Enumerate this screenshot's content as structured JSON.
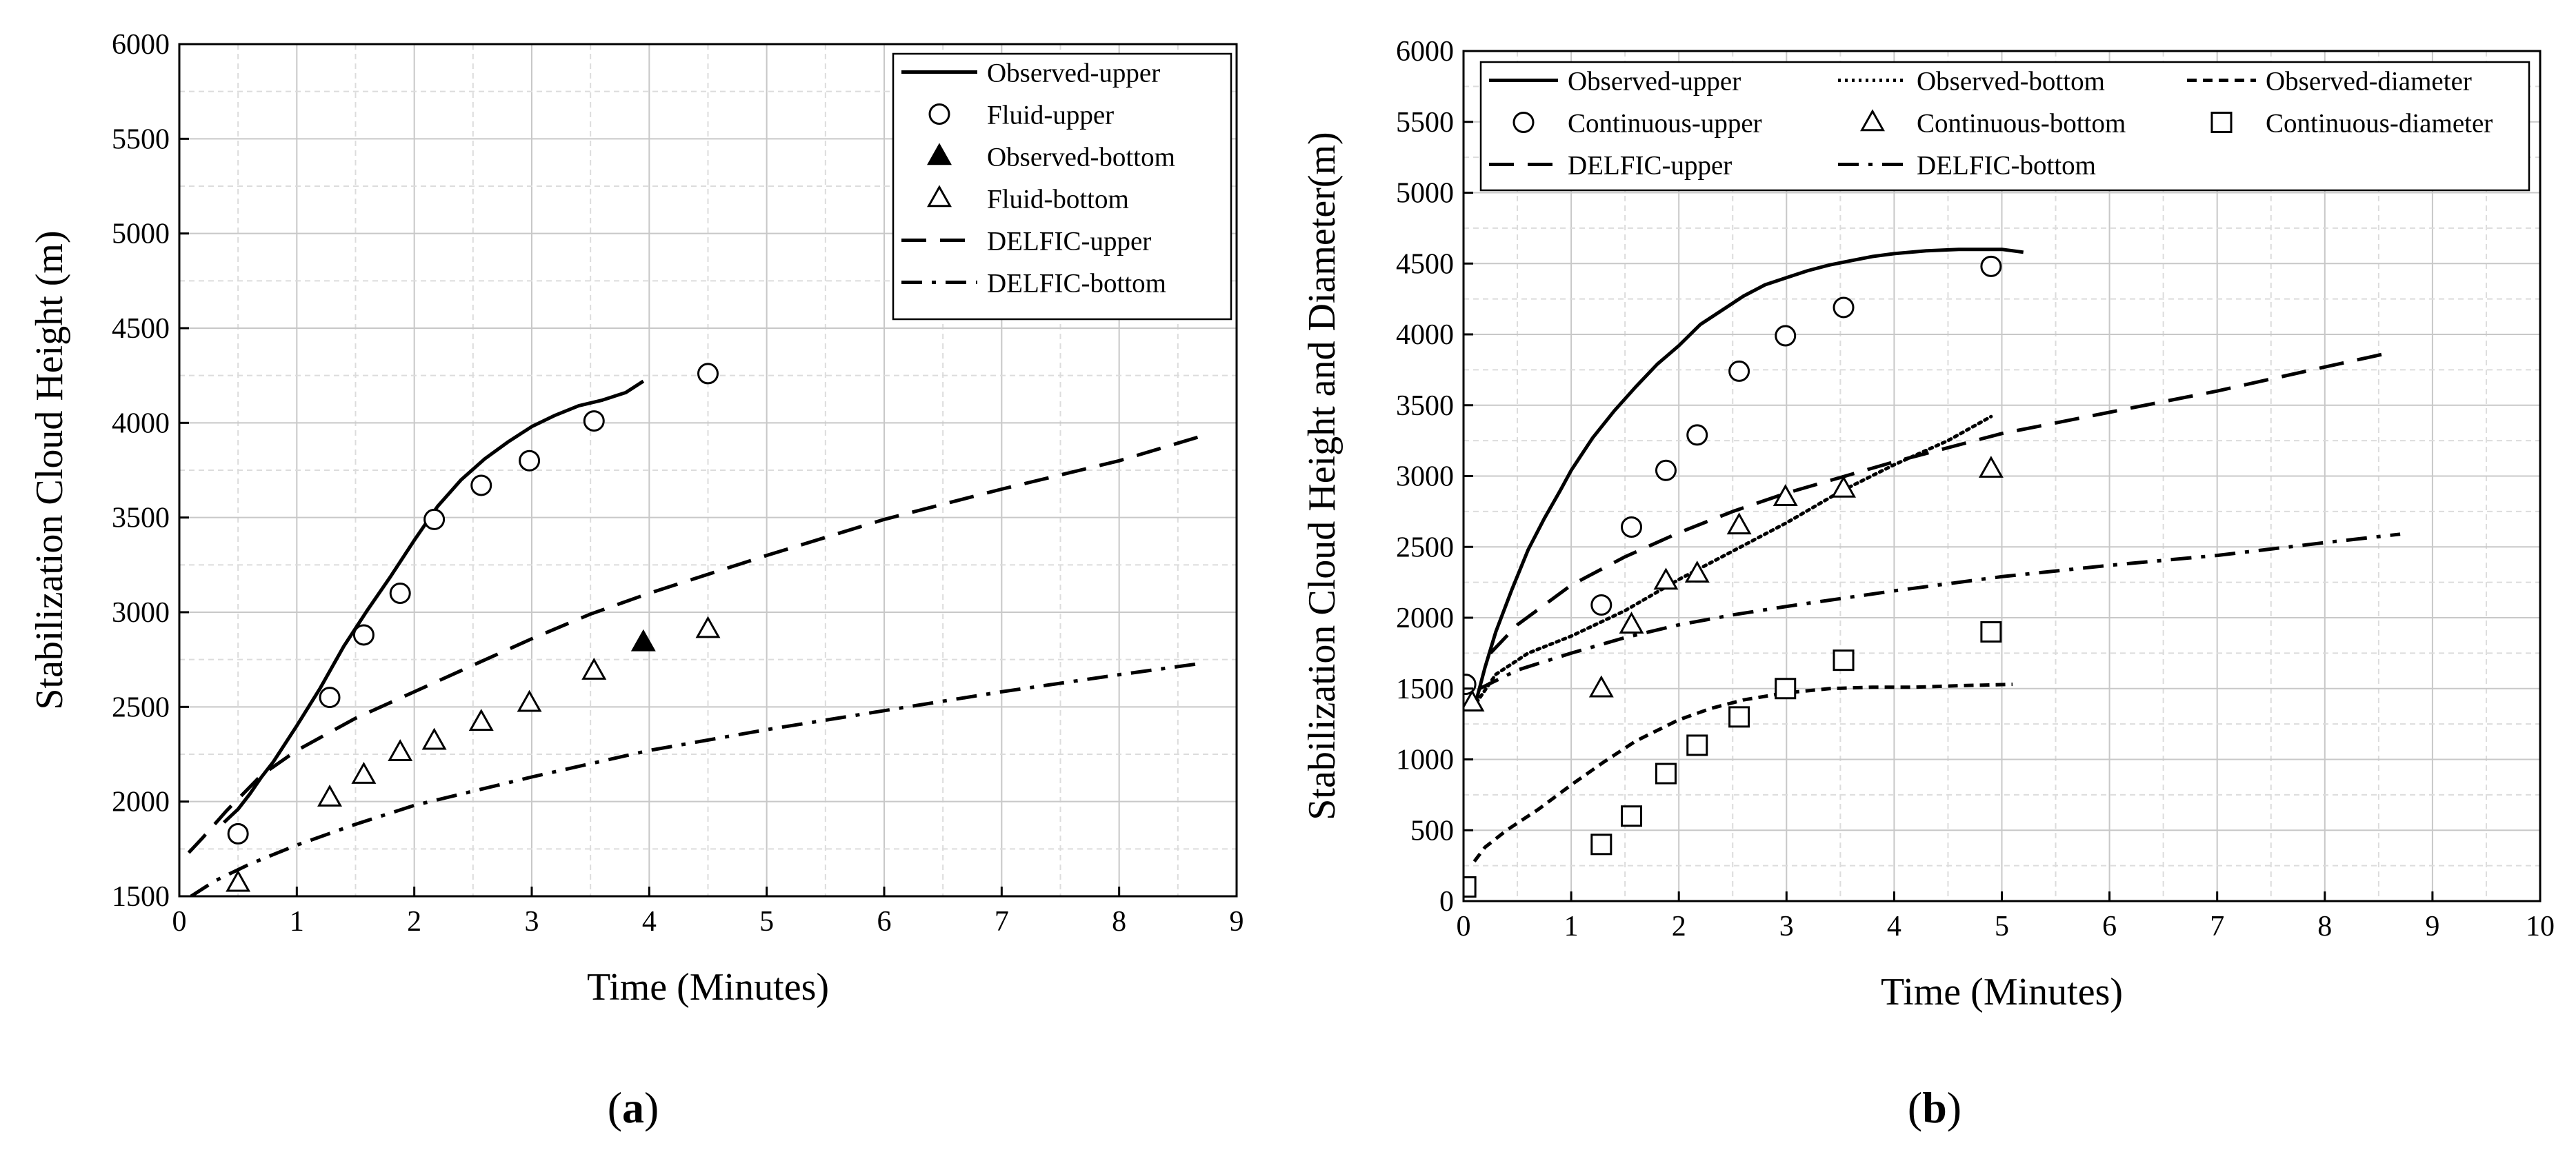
{
  "chart_data": [
    {
      "type": "line",
      "panel": "a",
      "panel_label": "a",
      "title": "",
      "xlabel": "Time (Minutes)",
      "ylabel": "Stabilization Cloud Height (m)",
      "xlim": [
        0,
        9
      ],
      "ylim": [
        1500,
        6000
      ],
      "xticks": [
        0,
        1,
        2,
        3,
        4,
        5,
        6,
        7,
        8,
        9
      ],
      "yticks": [
        1500,
        2000,
        2500,
        3000,
        3500,
        4000,
        4500,
        5000,
        5500,
        6000
      ],
      "grid": true,
      "legend_position": "top-right",
      "legend": [
        {
          "label": "Observed-upper",
          "series": "observed_upper",
          "style": "solid-line"
        },
        {
          "label": "Fluid-upper",
          "series": "fluid_upper",
          "style": "open-circle"
        },
        {
          "label": "Observed-bottom",
          "series": "observed_bottom",
          "style": "filled-triangle"
        },
        {
          "label": "Fluid-bottom",
          "series": "fluid_bottom",
          "style": "open-triangle"
        },
        {
          "label": "DELFIC-upper",
          "series": "delfic_upper",
          "style": "dashed-line"
        },
        {
          "label": "DELFIC-bottom",
          "series": "delfic_bottom",
          "style": "dashdot-line"
        }
      ],
      "series": [
        {
          "id": "observed_upper",
          "name": "Observed-upper",
          "style": "solid-line",
          "x": [
            0.38,
            0.5,
            0.6,
            0.7,
            0.8,
            1.0,
            1.2,
            1.4,
            1.6,
            1.8,
            2.0,
            2.2,
            2.4,
            2.6,
            2.8,
            3.0,
            3.2,
            3.4,
            3.6,
            3.8,
            3.95
          ],
          "y": [
            1890,
            1960,
            2040,
            2130,
            2210,
            2400,
            2600,
            2820,
            3010,
            3190,
            3380,
            3560,
            3700,
            3810,
            3900,
            3980,
            4040,
            4090,
            4120,
            4160,
            4220
          ]
        },
        {
          "id": "fluid_upper",
          "name": "Fluid-upper",
          "style": "open-circle",
          "x": [
            0.5,
            1.28,
            1.57,
            1.88,
            2.17,
            2.57,
            2.98,
            3.53,
            4.5
          ],
          "y": [
            1830,
            2550,
            2880,
            3100,
            3490,
            3670,
            3800,
            4010,
            4260
          ]
        },
        {
          "id": "observed_bottom",
          "name": "Observed-bottom",
          "style": "filled-triangle",
          "x": [
            3.95
          ],
          "y": [
            2840
          ]
        },
        {
          "id": "fluid_bottom",
          "name": "Fluid-bottom",
          "style": "open-triangle",
          "x": [
            0.5,
            1.28,
            1.57,
            1.88,
            2.17,
            2.57,
            2.98,
            3.53,
            4.5
          ],
          "y": [
            1570,
            2020,
            2140,
            2260,
            2320,
            2420,
            2520,
            2690,
            2910
          ]
        },
        {
          "id": "delfic_upper",
          "name": "DELFIC-upper",
          "style": "dashed-line",
          "x": [
            0.08,
            0.2,
            0.4,
            0.7,
            1.0,
            1.5,
            2.0,
            2.5,
            3.0,
            3.5,
            4.0,
            5.0,
            6.0,
            7.0,
            8.0,
            8.7
          ],
          "y": [
            1730,
            1810,
            1950,
            2140,
            2270,
            2440,
            2580,
            2720,
            2860,
            2990,
            3100,
            3300,
            3490,
            3650,
            3800,
            3930
          ]
        },
        {
          "id": "delfic_bottom",
          "name": "DELFIC-bottom",
          "style": "dashdot-line",
          "x": [
            0.1,
            0.3,
            0.6,
            1.0,
            1.5,
            2.0,
            3.0,
            4.0,
            5.0,
            6.0,
            7.0,
            8.0,
            8.7
          ],
          "y": [
            1500,
            1580,
            1670,
            1770,
            1880,
            1980,
            2130,
            2270,
            2380,
            2480,
            2580,
            2670,
            2730
          ]
        }
      ]
    },
    {
      "type": "line",
      "panel": "b",
      "panel_label": "b",
      "title": "",
      "xlabel": "Time (Minutes)",
      "ylabel": "Stabilization Cloud Height and Diameter(m)",
      "xlim": [
        0,
        10
      ],
      "ylim": [
        0,
        6000
      ],
      "xticks": [
        0,
        1,
        2,
        3,
        4,
        5,
        6,
        7,
        8,
        9,
        10
      ],
      "yticks": [
        0,
        500,
        1000,
        1500,
        2000,
        2500,
        3000,
        3500,
        4000,
        4500,
        5000,
        5500,
        6000
      ],
      "grid": true,
      "legend_position": "top",
      "legend": [
        {
          "label": "Observed-upper",
          "series": "observed_upper",
          "style": "solid-line"
        },
        {
          "label": "Observed-bottom",
          "series": "observed_bottom",
          "style": "dotted-line"
        },
        {
          "label": "Observed-diameter",
          "series": "observed_diameter",
          "style": "short-dashed-line"
        },
        {
          "label": "Continuous-upper",
          "series": "continuous_upper",
          "style": "open-circle"
        },
        {
          "label": "Continuous-bottom",
          "series": "continuous_bottom",
          "style": "open-triangle"
        },
        {
          "label": "Continuous-diameter",
          "series": "continuous_diameter",
          "style": "open-square"
        },
        {
          "label": "DELFIC-upper",
          "series": "delfic_upper",
          "style": "dashed-line"
        },
        {
          "label": "DELFIC-bottom",
          "series": "delfic_bottom",
          "style": "dashdot-line"
        }
      ],
      "series": [
        {
          "id": "observed_upper",
          "name": "Observed-upper",
          "style": "solid-line",
          "x": [
            0.12,
            0.2,
            0.3,
            0.45,
            0.6,
            0.75,
            0.9,
            1.0,
            1.2,
            1.4,
            1.6,
            1.8,
            2.0,
            2.2,
            2.4,
            2.6,
            2.8,
            3.0,
            3.2,
            3.4,
            3.6,
            3.8,
            4.0,
            4.3,
            4.6,
            5.0,
            5.2
          ],
          "y": [
            1420,
            1650,
            1900,
            2200,
            2480,
            2700,
            2900,
            3040,
            3270,
            3460,
            3630,
            3790,
            3920,
            4070,
            4170,
            4270,
            4350,
            4400,
            4450,
            4490,
            4520,
            4550,
            4570,
            4590,
            4600,
            4600,
            4580
          ]
        },
        {
          "id": "observed_bottom",
          "name": "Observed-bottom",
          "style": "dotted-line",
          "x": [
            0.12,
            0.3,
            0.6,
            1.0,
            1.5,
            2.0,
            2.5,
            3.0,
            3.5,
            4.0,
            4.5,
            4.9
          ],
          "y": [
            1400,
            1600,
            1750,
            1870,
            2050,
            2270,
            2470,
            2670,
            2890,
            3080,
            3250,
            3420
          ]
        },
        {
          "id": "observed_diameter",
          "name": "Observed-diameter",
          "style": "short-dashed-line",
          "x": [
            0.1,
            0.2,
            0.4,
            0.7,
            1.0,
            1.3,
            1.6,
            2.0,
            2.3,
            2.6,
            3.0,
            3.4,
            3.8,
            4.2,
            4.6,
            5.1
          ],
          "y": [
            280,
            380,
            500,
            650,
            820,
            980,
            1130,
            1280,
            1360,
            1420,
            1470,
            1500,
            1510,
            1510,
            1520,
            1530
          ]
        },
        {
          "id": "continuous_upper",
          "name": "Continuous-upper",
          "style": "open-circle",
          "x": [
            0.02,
            1.28,
            1.56,
            1.88,
            2.17,
            2.56,
            2.99,
            3.53,
            4.9
          ],
          "y": [
            1530,
            2090,
            2640,
            3040,
            3290,
            3740,
            3990,
            4190,
            4480
          ]
        },
        {
          "id": "continuous_bottom",
          "name": "Continuous-bottom",
          "style": "open-triangle",
          "x": [
            0.08,
            1.28,
            1.56,
            1.88,
            2.17,
            2.56,
            2.99,
            3.53,
            4.9
          ],
          "y": [
            1400,
            1500,
            1950,
            2260,
            2310,
            2650,
            2850,
            2910,
            3050
          ]
        },
        {
          "id": "continuous_diameter",
          "name": "Continuous-diameter",
          "style": "open-square",
          "x": [
            0.02,
            1.28,
            1.56,
            1.88,
            2.17,
            2.56,
            2.99,
            3.53,
            4.9
          ],
          "y": [
            100,
            400,
            600,
            900,
            1100,
            1300,
            1500,
            1700,
            1900
          ]
        },
        {
          "id": "delfic_upper",
          "name": "DELFIC-upper",
          "style": "dashed-line",
          "x": [
            0.25,
            0.5,
            1.0,
            1.5,
            2.0,
            2.5,
            3.0,
            3.5,
            4.0,
            5.0,
            6.0,
            7.0,
            8.0,
            8.6
          ],
          "y": [
            1750,
            1950,
            2230,
            2430,
            2600,
            2750,
            2880,
            2990,
            3100,
            3300,
            3450,
            3600,
            3770,
            3870
          ]
        },
        {
          "id": "delfic_bottom",
          "name": "DELFIC-bottom",
          "style": "dashdot-line",
          "x": [
            0.15,
            0.5,
            1.0,
            1.5,
            2.0,
            2.5,
            3.0,
            4.0,
            5.0,
            6.0,
            7.0,
            8.0,
            8.7
          ],
          "y": [
            1500,
            1630,
            1750,
            1860,
            1950,
            2020,
            2080,
            2190,
            2290,
            2370,
            2440,
            2530,
            2590
          ]
        }
      ]
    }
  ]
}
